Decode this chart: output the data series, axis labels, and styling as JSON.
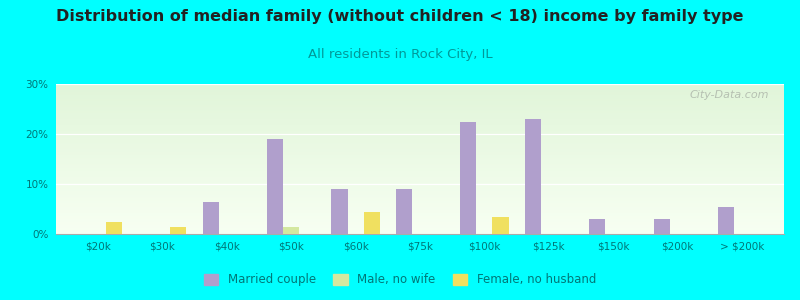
{
  "title": "Distribution of median family (without children < 18) income by family type",
  "subtitle": "All residents in Rock City, IL",
  "categories": [
    "$20k",
    "$30k",
    "$40k",
    "$50k",
    "$60k",
    "$75k",
    "$100k",
    "$125k",
    "$150k",
    "$200k",
    "> $200k"
  ],
  "married_couple": [
    0,
    0,
    6.5,
    19.0,
    9.0,
    9.0,
    22.5,
    23.0,
    3.0,
    3.0,
    5.5
  ],
  "male_no_wife": [
    0,
    0,
    0,
    1.5,
    0,
    0,
    0,
    0,
    0,
    0,
    0
  ],
  "female_no_husband": [
    2.5,
    1.5,
    0,
    0,
    4.5,
    0,
    3.5,
    0,
    0,
    0,
    0
  ],
  "married_color": "#b09fcc",
  "male_color": "#d4e8a0",
  "female_color": "#f0e060",
  "bg_color": "#00FFFF",
  "ylim": [
    0,
    30
  ],
  "yticks": [
    0,
    10,
    20,
    30
  ],
  "bar_width": 0.25,
  "title_fontsize": 11.5,
  "subtitle_fontsize": 9.5,
  "watermark": "City-Data.com"
}
